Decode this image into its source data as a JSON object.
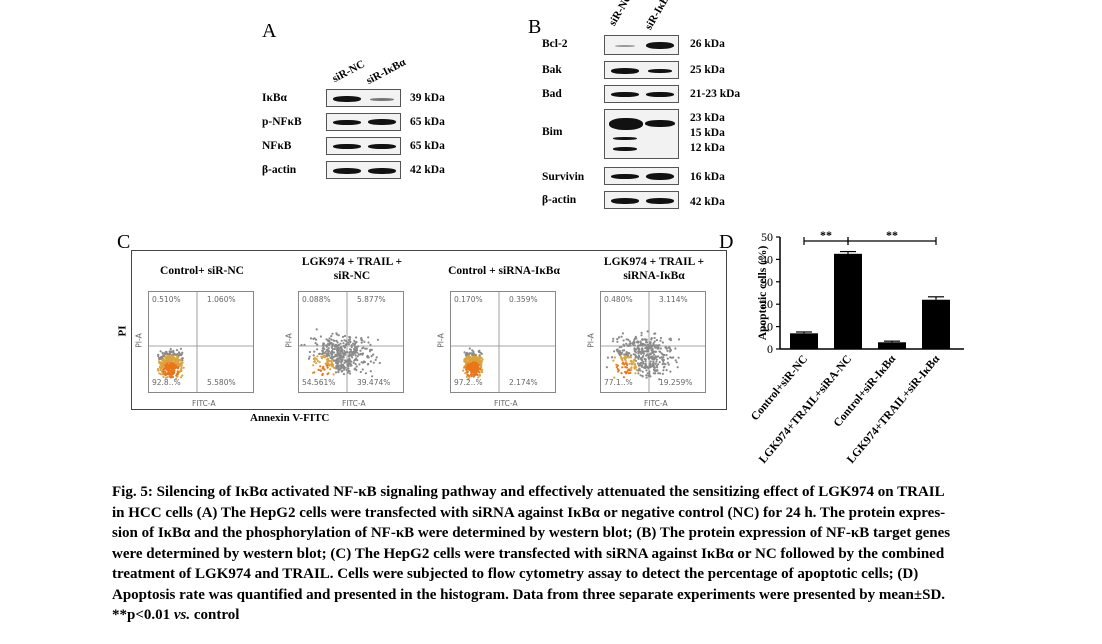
{
  "panel_a": {
    "letter": "A",
    "lanes": [
      "siR-NC",
      "siR-IκBα"
    ],
    "rows": [
      {
        "label": "IκBα",
        "kda": "39 kDa"
      },
      {
        "label": "p-NFκB",
        "kda": "65 kDa"
      },
      {
        "label": "NFκB",
        "kda": "65 kDa"
      },
      {
        "label": "β-actin",
        "kda": "42 kDa"
      }
    ]
  },
  "panel_b": {
    "letter": "B",
    "lanes": [
      "siR-NC",
      "siR-IκBα"
    ],
    "rows": [
      {
        "label": "Bcl-2",
        "kda": "26 kDa"
      },
      {
        "label": "Bak",
        "kda": "25 kDa"
      },
      {
        "label": "Bad",
        "kda": "21-23 kDa"
      },
      {
        "label": "Bim",
        "kda": [
          "23 kDa",
          "15 kDa",
          "12 kDa"
        ]
      },
      {
        "label": "Survivin",
        "kda": "16 kDa"
      },
      {
        "label": "β-actin",
        "kda": "42 kDa"
      }
    ]
  },
  "panel_c": {
    "letter": "C",
    "y_label": "PI",
    "x_label": "Annexin V-FITC",
    "plots": [
      {
        "title": [
          "Control+ siR-NC"
        ],
        "q": [
          "0.510%",
          "1.060%",
          "92.8..%",
          "5.580%"
        ]
      },
      {
        "title": [
          "LGK974 + TRAIL +",
          "siR-NC"
        ],
        "q": [
          "0.088%",
          "5.877%",
          "54.561%",
          "39.474%"
        ]
      },
      {
        "title": [
          "Control + siRNA-IκBα"
        ],
        "q": [
          "0.170%",
          "0.359%",
          "97.2..%",
          "2.174%"
        ]
      },
      {
        "title": [
          "LGK974 + TRAIL +",
          "siRNA-IκBα"
        ],
        "q": [
          "0.480%",
          "3.114%",
          "77.1..%",
          "19.259%"
        ]
      }
    ],
    "axis_x": "FITC-A",
    "axis_y": "PI-A"
  },
  "chart_data": {
    "type": "bar",
    "title": "D",
    "categories": [
      "Control+siR-NC",
      "LGK974+TRAIL+siRA-NC",
      "Control+siR-IκBα",
      "LGK974+TRAIL+siR-IκBα"
    ],
    "values": [
      7,
      42.5,
      3,
      22
    ],
    "errors": [
      0.6,
      1.0,
      0.5,
      1.3
    ],
    "ylabel": "Apoptotic cells (%)",
    "ylim": [
      0,
      50
    ],
    "yticks": [
      0,
      10,
      20,
      30,
      40,
      50
    ],
    "significance": [
      "**",
      "**"
    ]
  },
  "caption": {
    "lines": [
      "Fig. 5: Silencing of IκBα activated NF-κB signaling pathway and effectively attenuated the sensitizing effect of LGK974 on TRAIL",
      "in HCC cells (A) The HepG2 cells were transfected with siRNA against IκBα or negative control (NC) for 24 h. The protein expres-",
      "sion of IκBα and the phosphorylation of NF-κB were determined by western blot; (B) The protein expression of NF-κB target genes",
      "were determined by western blot; (C) The HepG2 cells were transfected with siRNA against IκBα or NC followed by the combined",
      "treatment of LGK974 and TRAIL. Cells were subjected to flow cytometry assay to detect the percentage of apoptotic cells; (D)",
      "Apoptosis rate was quantified and presented in the histogram. Data from three separate experiments were presented by mean±SD."
    ],
    "last_prefix": "**p<0.01 ",
    "last_vs": "vs.",
    "last_suffix": " control"
  }
}
